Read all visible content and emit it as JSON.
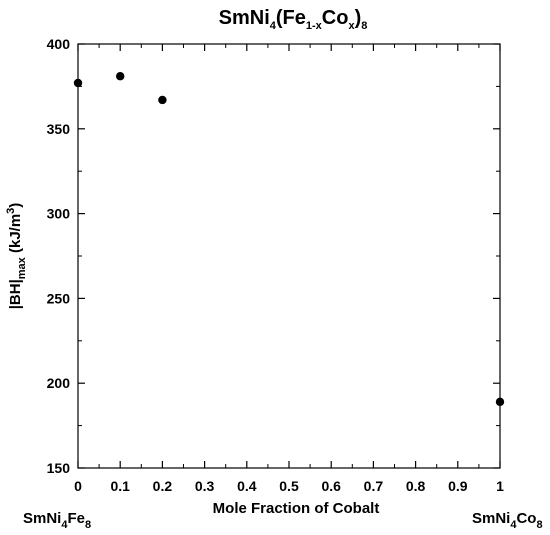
{
  "chart_data": {
    "type": "scatter",
    "title": {
      "parts": [
        {
          "text": "SmNi",
          "shift": "none"
        },
        {
          "text": "4",
          "shift": "sub"
        },
        {
          "text": "(Fe",
          "shift": "none"
        },
        {
          "text": "1-x",
          "shift": "sub"
        },
        {
          "text": "Co",
          "shift": "none"
        },
        {
          "text": "x",
          "shift": "sub"
        },
        {
          "text": ")",
          "shift": "none"
        },
        {
          "text": "8",
          "shift": "sub"
        }
      ]
    },
    "xlabel": "Mole Fraction of Cobalt",
    "ylabel": {
      "parts": [
        {
          "text": "|BH|",
          "shift": "none"
        },
        {
          "text": "max",
          "shift": "sub"
        },
        {
          "text": " (kJ/m",
          "shift": "none"
        },
        {
          "text": "3",
          "shift": "sup"
        },
        {
          "text": ")",
          "shift": "none"
        }
      ]
    },
    "xlim": [
      0,
      1
    ],
    "ylim": [
      150,
      400
    ],
    "xticks": [
      "0",
      "0.1",
      "0.2",
      "0.3",
      "0.4",
      "0.5",
      "0.6",
      "0.7",
      "0.8",
      "0.9",
      "1"
    ],
    "yticks": [
      "150",
      "200",
      "250",
      "300",
      "350",
      "400"
    ],
    "grid": false,
    "points": [
      {
        "x": 0,
        "y": 377
      },
      {
        "x": 0.1,
        "y": 381
      },
      {
        "x": 0.2,
        "y": 367
      },
      {
        "x": 1,
        "y": 189
      }
    ],
    "x_end_labels": {
      "left": {
        "parts": [
          {
            "text": "SmNi",
            "shift": "none"
          },
          {
            "text": "4",
            "shift": "sub"
          },
          {
            "text": "Fe",
            "shift": "none"
          },
          {
            "text": "8",
            "shift": "sub"
          }
        ]
      },
      "right": {
        "parts": [
          {
            "text": "SmNi",
            "shift": "none"
          },
          {
            "text": "4",
            "shift": "sub"
          },
          {
            "text": "Co",
            "shift": "none"
          },
          {
            "text": "8",
            "shift": "sub"
          }
        ]
      }
    },
    "colors": {
      "marker": "#000000",
      "axes": "#000000"
    }
  }
}
